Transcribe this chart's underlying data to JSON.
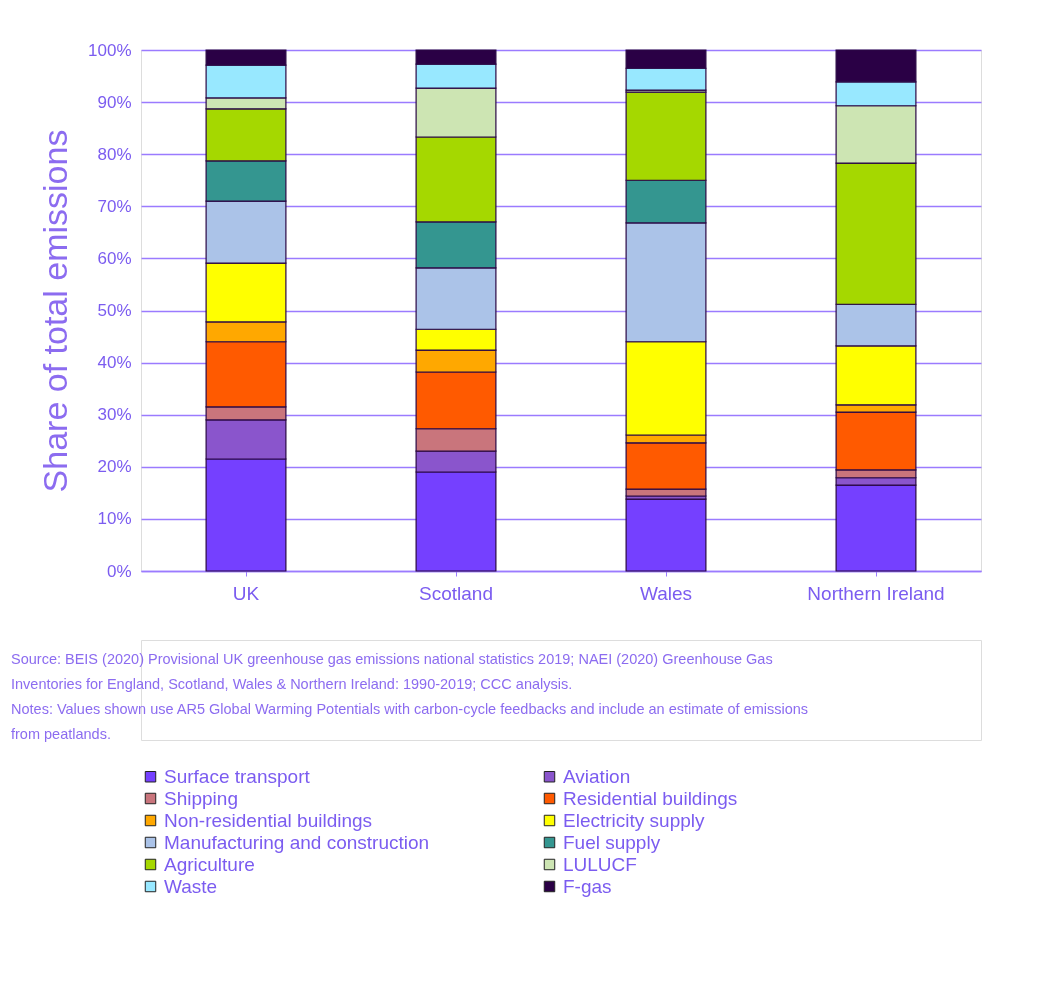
{
  "chart_data": {
    "type": "bar",
    "stacked": true,
    "ylabel": "Share of total emissions",
    "categories": [
      "UK",
      "Scotland",
      "Wales",
      "Northern Ireland"
    ],
    "ylim": [
      0,
      100
    ],
    "yticks": [
      {
        "value": 0,
        "label": "0%"
      },
      {
        "value": 10,
        "label": "10%"
      },
      {
        "value": 20,
        "label": "20%"
      },
      {
        "value": 30,
        "label": "30%"
      },
      {
        "value": 40,
        "label": "40%"
      },
      {
        "value": 50,
        "label": "50%"
      },
      {
        "value": 60,
        "label": "60%"
      },
      {
        "value": 70,
        "label": "70%"
      },
      {
        "value": 80,
        "label": "80%"
      },
      {
        "value": 90,
        "label": "90%"
      },
      {
        "value": 100,
        "label": "100%"
      }
    ],
    "grid": "y",
    "legend": "bottom",
    "series": [
      {
        "name": "Surface transport",
        "color": "#7540ff",
        "values": [
          21.5,
          19.0,
          13.8,
          16.5
        ]
      },
      {
        "name": "Aviation",
        "color": "#8a55cc",
        "values": [
          7.5,
          4.0,
          0.6,
          1.4
        ]
      },
      {
        "name": "Shipping",
        "color": "#c9757c",
        "values": [
          2.5,
          4.3,
          1.3,
          1.5
        ]
      },
      {
        "name": "Residential buildings",
        "color": "#ff5a00",
        "values": [
          12.5,
          10.9,
          8.9,
          11.1
        ]
      },
      {
        "name": "Non-residential buildings",
        "color": "#ffa800",
        "values": [
          3.8,
          4.2,
          1.5,
          1.4
        ]
      },
      {
        "name": "Electricity supply",
        "color": "#ffff00",
        "values": [
          11.3,
          4.0,
          17.9,
          11.3
        ]
      },
      {
        "name": "Manufacturing and construction",
        "color": "#abc3e8",
        "values": [
          11.9,
          11.8,
          22.8,
          8.0
        ]
      },
      {
        "name": "Fuel supply",
        "color": "#349690",
        "values": [
          7.7,
          8.8,
          8.2,
          0
        ]
      },
      {
        "name": "Agriculture",
        "color": "#a5d800",
        "values": [
          10.0,
          16.3,
          16.9,
          27.1
        ]
      },
      {
        "name": "LULUCF",
        "color": "#cde5b3",
        "values": [
          2.1,
          9.4,
          0.4,
          11.0
        ]
      },
      {
        "name": "Waste",
        "color": "#98e8ff",
        "values": [
          6.3,
          4.6,
          4.2,
          4.6
        ]
      },
      {
        "name": "F-gas",
        "color": "#2a0045",
        "values": [
          2.9,
          2.7,
          3.5,
          6.1
        ]
      }
    ],
    "annotations": [
      "Source: BEIS (2020) Provisional UK greenhouse gas emissions national statistics 2019;  NAEI (2020) Greenhouse Gas Inventories for England, Scotland, Wales & Northern Ireland: 1990-2019; CCC analysis.",
      "Notes: Values shown use AR5 Global Warming Potentials with carbon-cycle feedbacks and include an estimate of emissions from peatlands."
    ]
  }
}
